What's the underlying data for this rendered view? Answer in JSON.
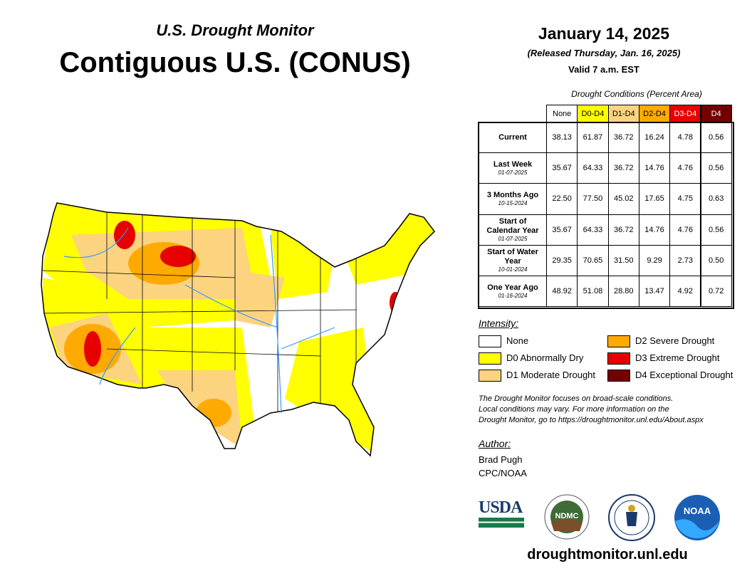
{
  "header": {
    "subtitle": "U.S. Drought Monitor",
    "title": "Contiguous U.S. (CONUS)"
  },
  "date": {
    "main": "January 14, 2025",
    "released": "(Released Thursday, Jan. 16, 2025)",
    "valid": "Valid 7 a.m. EST"
  },
  "table": {
    "caption": "Drought Conditions (Percent Area)",
    "columns": [
      {
        "label": "None",
        "color": "#ffffff",
        "text": "#000000"
      },
      {
        "label": "D0-D4",
        "color": "#ffff00",
        "text": "#000000"
      },
      {
        "label": "D1-D4",
        "color": "#fcd37f",
        "text": "#000000"
      },
      {
        "label": "D2-D4",
        "color": "#ffaa00",
        "text": "#000000"
      },
      {
        "label": "D3-D4",
        "color": "#e60000",
        "text": "#ffffff"
      },
      {
        "label": "D4",
        "color": "#730000",
        "text": "#ffffff"
      }
    ],
    "rows": [
      {
        "label": "Current",
        "values": [
          "38.13",
          "61.87",
          "36.72",
          "16.24",
          "4.78",
          "0.56"
        ]
      },
      {
        "label": "Last Week",
        "date": "01-07-2025",
        "values": [
          "35.67",
          "64.33",
          "36.72",
          "14.76",
          "4.76",
          "0.56"
        ]
      },
      {
        "label": "3 Months Ago",
        "date": "10-15-2024",
        "values": [
          "22.50",
          "77.50",
          "45.02",
          "17.65",
          "4.75",
          "0.63"
        ]
      },
      {
        "label": "Start of Calendar Year",
        "date": "01-07-2025",
        "values": [
          "35.67",
          "64.33",
          "36.72",
          "14.76",
          "4.76",
          "0.56"
        ]
      },
      {
        "label": "Start of Water Year",
        "date": "10-01-2024",
        "values": [
          "29.35",
          "70.65",
          "31.50",
          "9.29",
          "2.73",
          "0.50"
        ]
      },
      {
        "label": "One Year Ago",
        "date": "01-16-2024",
        "values": [
          "48.92",
          "51.08",
          "28.80",
          "13.47",
          "4.92",
          "0.72"
        ]
      }
    ]
  },
  "legend": {
    "title": "Intensity:",
    "items": [
      {
        "label": "None",
        "color": "#ffffff"
      },
      {
        "label": "D0 Abnormally Dry",
        "color": "#ffff00"
      },
      {
        "label": "D1 Moderate Drought",
        "color": "#fcd37f"
      },
      {
        "label": "D2 Severe Drought",
        "color": "#ffaa00"
      },
      {
        "label": "D3 Extreme Drought",
        "color": "#e60000"
      },
      {
        "label": "D4 Exceptional Drought",
        "color": "#730000"
      }
    ]
  },
  "note": [
    "The Drought Monitor focuses on broad-scale conditions.",
    "Local conditions may vary. For more information on the",
    "Drought Monitor, go to https://droughtmonitor.unl.edu/About.aspx"
  ],
  "author": {
    "title": "Author:",
    "lines": [
      "Brad Pugh",
      "CPC/NOAA"
    ]
  },
  "logos": [
    "USDA",
    "NDMC",
    "NOAA"
  ],
  "url": "droughtmonitor.unl.edu"
}
